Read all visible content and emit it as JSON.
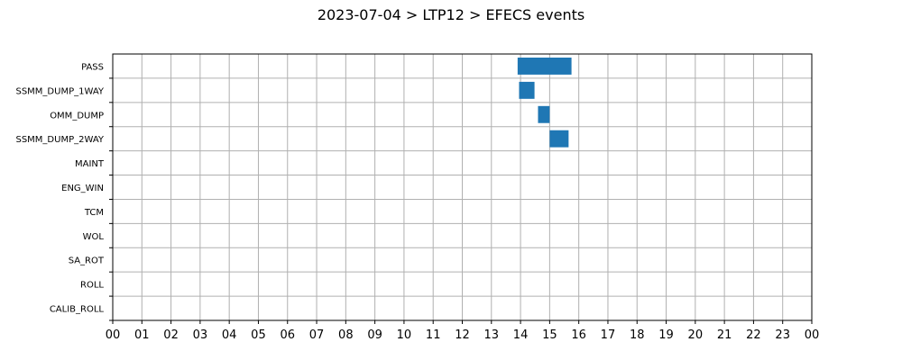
{
  "chart_data": {
    "type": "bar",
    "title": "2023-07-04 > LTP12 > EFECS events",
    "categories": [
      "PASS",
      "SSMM_DUMP_1WAY",
      "OMM_DUMP",
      "SSMM_DUMP_2WAY",
      "MAINT",
      "ENG_WIN",
      "TCM",
      "WOL",
      "SA_ROT",
      "ROLL",
      "CALIB_ROLL"
    ],
    "x_ticks": [
      "00",
      "01",
      "02",
      "03",
      "04",
      "05",
      "06",
      "07",
      "08",
      "09",
      "10",
      "11",
      "12",
      "13",
      "14",
      "15",
      "16",
      "17",
      "18",
      "19",
      "20",
      "21",
      "22",
      "23",
      "00"
    ],
    "xlim": [
      0,
      24
    ],
    "xlabel": "",
    "ylabel": "",
    "grid": true,
    "bar_color": "#1f77b4",
    "events": [
      {
        "category": "PASS",
        "start": 13.9,
        "end": 15.75
      },
      {
        "category": "SSMM_DUMP_1WAY",
        "start": 13.95,
        "end": 14.48
      },
      {
        "category": "OMM_DUMP",
        "start": 14.6,
        "end": 15.0
      },
      {
        "category": "SSMM_DUMP_2WAY",
        "start": 15.0,
        "end": 15.65
      }
    ]
  }
}
